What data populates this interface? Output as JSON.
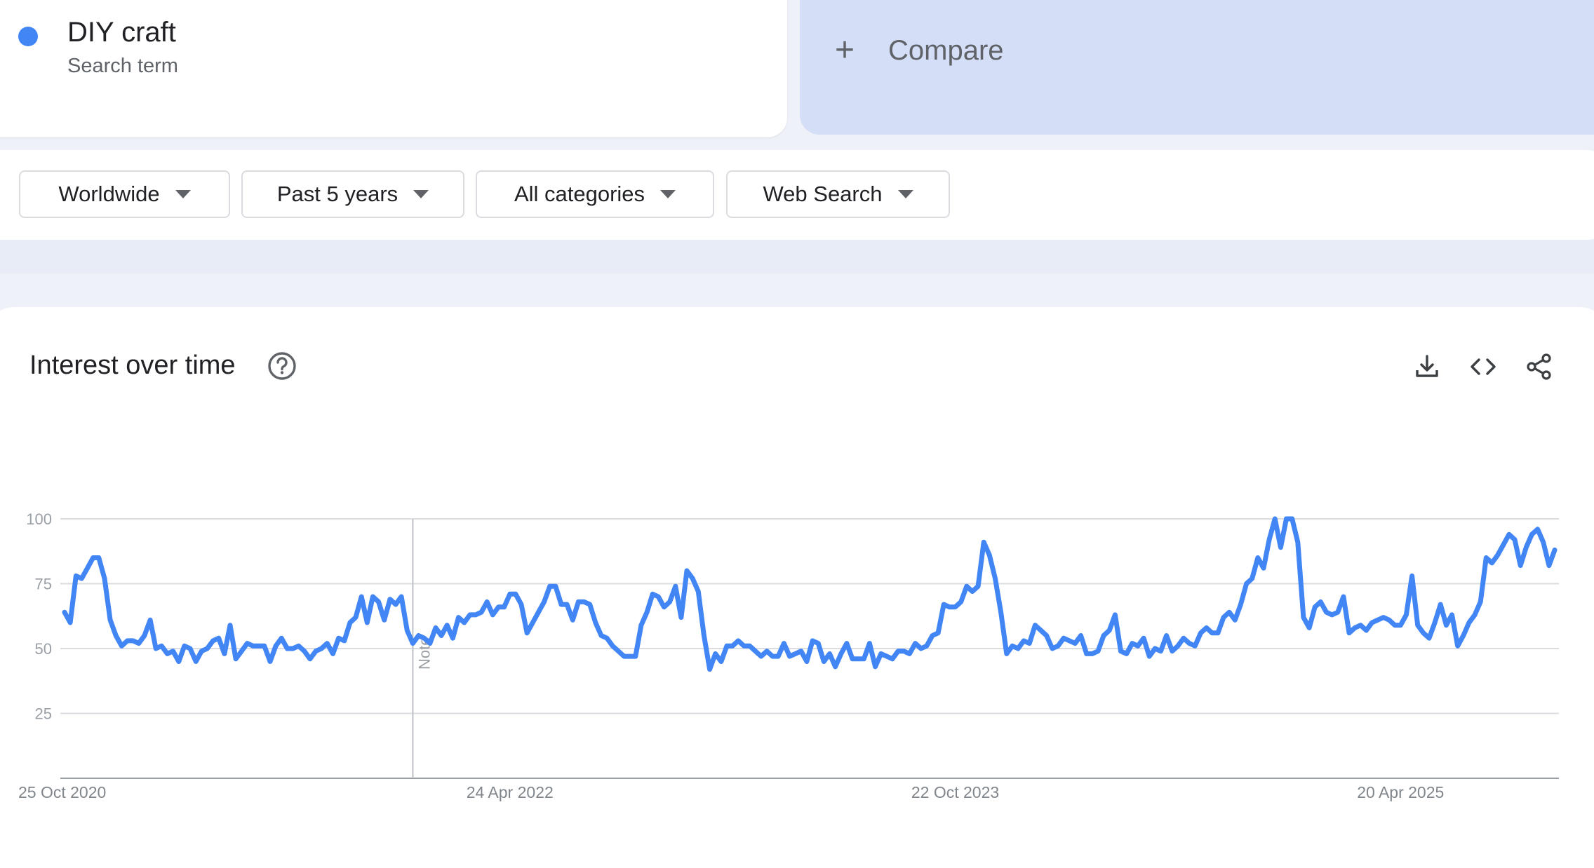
{
  "term": {
    "name": "DIY craft",
    "subtitle": "Search term",
    "color": "#4285f4"
  },
  "compare": {
    "label": "Compare",
    "icon": "plus-icon"
  },
  "filters": [
    {
      "label": "Worldwide"
    },
    {
      "label": "Past 5 years"
    },
    {
      "label": "All categories"
    },
    {
      "label": "Web Search"
    }
  ],
  "panel": {
    "title": "Interest over time",
    "icons": [
      "help-icon",
      "download-icon",
      "embed-code-icon",
      "share-icon"
    ]
  },
  "chart_data": {
    "type": "line",
    "title": "",
    "xlabel": "",
    "ylabel": "",
    "ylim": [
      0,
      100
    ],
    "y_ticks": [
      "100",
      "75",
      "50",
      "25"
    ],
    "x_tick_labels": [
      "25 Oct 2020",
      "24 Apr 2022",
      "22 Oct 2023",
      "20 Apr 2025"
    ],
    "marker_label": "Note",
    "grid": true,
    "line_color": "#4285f4",
    "series": [
      {
        "values": [
          64,
          60,
          78,
          77,
          81,
          85,
          85,
          77,
          61,
          55,
          51,
          53,
          53,
          52,
          55,
          61,
          50,
          51,
          48,
          49,
          45,
          51,
          50,
          45,
          49,
          50,
          53,
          54,
          48,
          59,
          46,
          49,
          52,
          51,
          51,
          51,
          45,
          51,
          54,
          50,
          50,
          51,
          49,
          46,
          49,
          50,
          52,
          48,
          54,
          53,
          60,
          62,
          70,
          60,
          70,
          68,
          61,
          69,
          67,
          70,
          57,
          52,
          55,
          54,
          52,
          58,
          55,
          59,
          54,
          62,
          60,
          63,
          63,
          64,
          68,
          63,
          66,
          66,
          71,
          71,
          67,
          56,
          60,
          64,
          68,
          74,
          74,
          67,
          67,
          61,
          68,
          68,
          67,
          60,
          55,
          54,
          51,
          49,
          47,
          47,
          47,
          59,
          64,
          71,
          70,
          66,
          68,
          74,
          62,
          80,
          77,
          72,
          55,
          42,
          48,
          45,
          51,
          51,
          53,
          51,
          51,
          49,
          47,
          49,
          47,
          47,
          52,
          47,
          48,
          49,
          45,
          53,
          52,
          45,
          48,
          43,
          48,
          52,
          46,
          46,
          46,
          52,
          43,
          48,
          47,
          46,
          49,
          49,
          48,
          52,
          50,
          51,
          55,
          56,
          67,
          66,
          66,
          68,
          74,
          72,
          74,
          91,
          86,
          77,
          64,
          48,
          51,
          50,
          53,
          52,
          59,
          57,
          55,
          50,
          51,
          54,
          53,
          52,
          55,
          48,
          48,
          49,
          55,
          57,
          63,
          49,
          48,
          52,
          51,
          54,
          47,
          50,
          49,
          55,
          49,
          51,
          54,
          52,
          51,
          56,
          58,
          56,
          56,
          62,
          64,
          61,
          67,
          75,
          77,
          85,
          81,
          92,
          100,
          89,
          100,
          100,
          91,
          62,
          58,
          66,
          68,
          64,
          63,
          64,
          70,
          56,
          58,
          59,
          57,
          60,
          61,
          62,
          61,
          59,
          59,
          63,
          78,
          59,
          56,
          54,
          60,
          67,
          59,
          63,
          51,
          55,
          60,
          63,
          68,
          85,
          83,
          86,
          90,
          94,
          92,
          82,
          89,
          94,
          96,
          91,
          82,
          88
        ],
        "first_date": "25 Oct 2020"
      }
    ]
  }
}
